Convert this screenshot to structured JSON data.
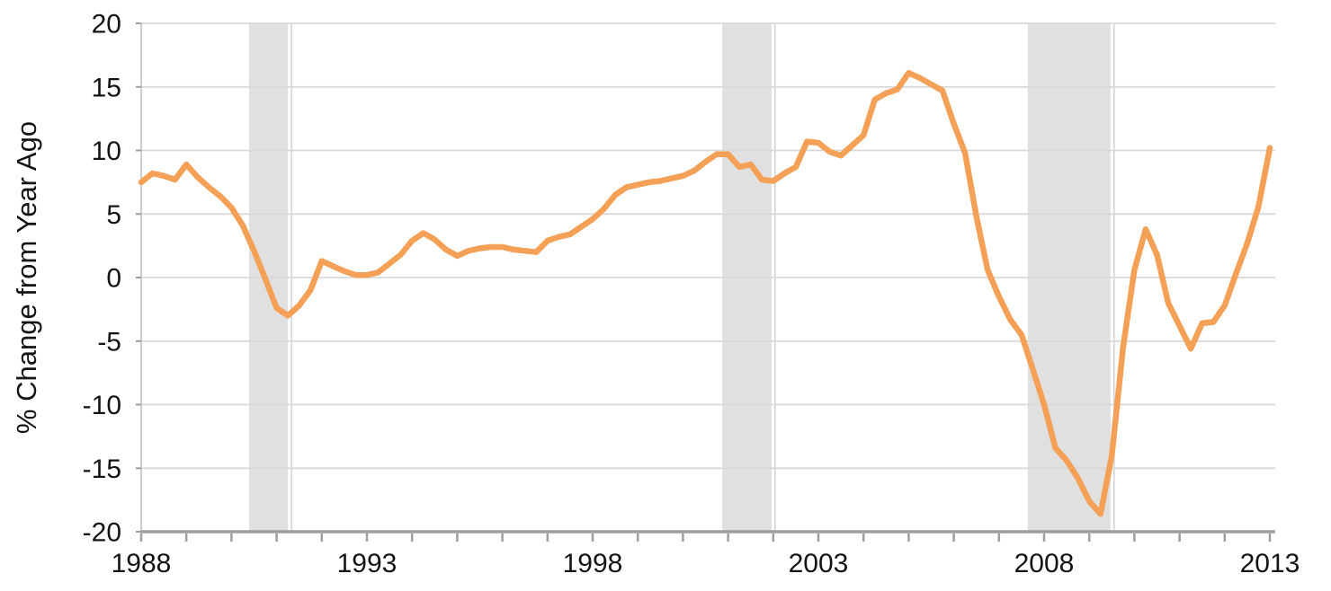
{
  "chart_data": {
    "type": "line",
    "title": "",
    "ylabel": "% Change from Year Ago",
    "xlabel": "",
    "ylim": [
      -20,
      20
    ],
    "xlim": [
      1988.0,
      2013.12
    ],
    "y_ticks": [
      20,
      15,
      10,
      5,
      0,
      -5,
      -10,
      -15,
      -20
    ],
    "x_label_years": [
      1988,
      1993,
      1998,
      2003,
      2008,
      2013
    ],
    "x_minor_tick_start": 1988,
    "x_minor_tick_end": 2013,
    "x_minor_tick_step": 1,
    "grid": "horizontal",
    "legend": "none",
    "recession_bands": [
      {
        "from": 1990.39,
        "to": 1991.25
      },
      {
        "from": 2000.87,
        "to": 2001.96
      },
      {
        "from": 2007.64,
        "to": 2009.47
      }
    ],
    "series": [
      {
        "name": "house-price-percent-change",
        "x": [
          1988.0,
          1988.25,
          1988.5,
          1988.75,
          1989.0,
          1989.25,
          1989.5,
          1989.75,
          1990.0,
          1990.25,
          1990.5,
          1990.75,
          1991.0,
          1991.25,
          1991.5,
          1991.75,
          1992.0,
          1992.25,
          1992.5,
          1992.75,
          1993.0,
          1993.25,
          1993.5,
          1993.75,
          1994.0,
          1994.25,
          1994.5,
          1994.75,
          1995.0,
          1995.25,
          1995.5,
          1995.75,
          1996.0,
          1996.25,
          1996.5,
          1996.75,
          1997.0,
          1997.25,
          1997.5,
          1997.75,
          1998.0,
          1998.25,
          1998.5,
          1998.75,
          1999.0,
          1999.25,
          1999.5,
          1999.75,
          2000.0,
          2000.25,
          2000.5,
          2000.75,
          2001.0,
          2001.25,
          2001.5,
          2001.75,
          2002.0,
          2002.25,
          2002.5,
          2002.75,
          2003.0,
          2003.25,
          2003.5,
          2003.75,
          2004.0,
          2004.25,
          2004.5,
          2004.75,
          2005.0,
          2005.25,
          2005.5,
          2005.75,
          2006.0,
          2006.25,
          2006.5,
          2006.75,
          2007.0,
          2007.25,
          2007.5,
          2007.75,
          2008.0,
          2008.25,
          2008.5,
          2008.75,
          2009.0,
          2009.25,
          2009.5,
          2009.75,
          2010.0,
          2010.25,
          2010.5,
          2010.75,
          2011.0,
          2011.25,
          2011.5,
          2011.75,
          2012.0,
          2012.25,
          2012.5,
          2012.75,
          2013.0
        ],
        "y": [
          7.5,
          8.2,
          8.0,
          7.7,
          8.9,
          7.9,
          7.1,
          6.4,
          5.5,
          4.1,
          2.1,
          -0.1,
          -2.4,
          -3.0,
          -2.2,
          -1.0,
          1.3,
          0.9,
          0.5,
          0.2,
          0.2,
          0.4,
          1.1,
          1.8,
          2.9,
          3.5,
          3.0,
          2.2,
          1.7,
          2.1,
          2.3,
          2.4,
          2.4,
          2.2,
          2.1,
          2.0,
          2.9,
          3.2,
          3.4,
          4.0,
          4.6,
          5.4,
          6.5,
          7.1,
          7.3,
          7.5,
          7.6,
          7.8,
          8.0,
          8.4,
          9.1,
          9.7,
          9.7,
          8.7,
          8.9,
          7.7,
          7.6,
          8.2,
          8.7,
          10.7,
          10.6,
          9.9,
          9.6,
          10.4,
          11.2,
          14.0,
          14.5,
          14.8,
          16.1,
          15.7,
          15.2,
          14.7,
          12.1,
          9.8,
          4.8,
          0.6,
          -1.5,
          -3.3,
          -4.5,
          -7.2,
          -10.0,
          -13.4,
          -14.4,
          -15.8,
          -17.6,
          -18.6,
          -14.0,
          -5.5,
          0.6,
          3.8,
          1.8,
          -2.0,
          -3.8,
          -5.6,
          -3.6,
          -3.5,
          -2.2,
          0.3,
          2.7,
          5.6,
          10.2
        ]
      }
    ],
    "colors": {
      "line": "#F4A056",
      "band": "#E0E0E0",
      "band_edge": "#D5D5D5",
      "grid": "#D8D8D8",
      "axis": "#9E9E9E",
      "axis_left": "#CDCDCD",
      "text": "#141414"
    }
  }
}
